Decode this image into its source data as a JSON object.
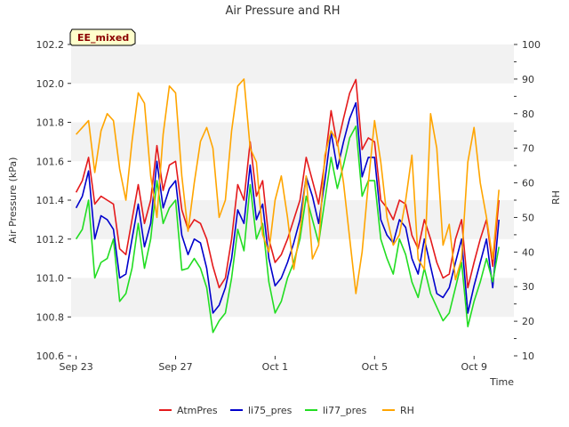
{
  "chart_data": {
    "type": "line",
    "title": "Air Pressure and RH",
    "xlabel": "Time",
    "ylabel": "Air Pressure (kPa)",
    "y2label": "RH",
    "badge": "EE_mixed",
    "x_ticks": [
      "Sep 23",
      "Sep 27",
      "Oct 1",
      "Oct 5",
      "Oct 9"
    ],
    "x_tick_days": [
      0,
      4,
      8,
      12,
      16
    ],
    "xlim_days": [
      -0.2,
      17.6
    ],
    "ylim": [
      100.6,
      102.2
    ],
    "y_ticks": [
      "100.6",
      "100.8",
      "101.0",
      "101.2",
      "101.4",
      "101.6",
      "101.8",
      "102.0",
      "102.2"
    ],
    "y2lim": [
      10,
      100
    ],
    "y2_ticks": [
      "10",
      "20",
      "30",
      "40",
      "50",
      "60",
      "70",
      "80",
      "90",
      "100"
    ],
    "grid": "horizontal bands",
    "legend_position": "bottom",
    "series": [
      {
        "name": "AtmPres",
        "color": "#e41a1c",
        "axis": "left",
        "x": [
          0,
          0.25,
          0.5,
          0.75,
          1,
          1.25,
          1.5,
          1.75,
          2,
          2.25,
          2.5,
          2.75,
          3,
          3.25,
          3.5,
          3.75,
          4,
          4.25,
          4.5,
          4.75,
          5,
          5.25,
          5.5,
          5.75,
          6,
          6.25,
          6.5,
          6.75,
          7,
          7.25,
          7.5,
          7.75,
          8,
          8.25,
          8.5,
          8.75,
          9,
          9.25,
          9.5,
          9.75,
          10,
          10.25,
          10.5,
          10.75,
          11,
          11.25,
          11.5,
          11.75,
          12,
          12.25,
          12.5,
          12.75,
          13,
          13.25,
          13.5,
          13.75,
          14,
          14.25,
          14.5,
          14.75,
          15,
          15.25,
          15.5,
          15.75,
          16,
          16.25,
          16.5,
          16.75,
          17
        ],
        "values": [
          101.44,
          101.5,
          101.62,
          101.38,
          101.42,
          101.4,
          101.38,
          101.15,
          101.12,
          101.3,
          101.48,
          101.28,
          101.4,
          101.68,
          101.45,
          101.58,
          101.6,
          101.35,
          101.25,
          101.3,
          101.28,
          101.2,
          101.06,
          100.95,
          101.0,
          101.2,
          101.48,
          101.4,
          101.7,
          101.42,
          101.5,
          101.2,
          101.08,
          101.12,
          101.2,
          101.3,
          101.4,
          101.62,
          101.5,
          101.38,
          101.6,
          101.86,
          101.68,
          101.82,
          101.95,
          102.02,
          101.66,
          101.72,
          101.7,
          101.4,
          101.36,
          101.3,
          101.4,
          101.38,
          101.22,
          101.15,
          101.3,
          101.2,
          101.08,
          101.0,
          101.02,
          101.2,
          101.3,
          100.95,
          101.08,
          101.2,
          101.3,
          101.06,
          101.4
        ]
      },
      {
        "name": "li75_pres",
        "color": "#0000cc",
        "axis": "left",
        "x": [
          0,
          0.25,
          0.5,
          0.75,
          1,
          1.25,
          1.5,
          1.75,
          2,
          2.25,
          2.5,
          2.75,
          3,
          3.25,
          3.5,
          3.75,
          4,
          4.25,
          4.5,
          4.75,
          5,
          5.25,
          5.5,
          5.75,
          6,
          6.25,
          6.5,
          6.75,
          7,
          7.25,
          7.5,
          7.75,
          8,
          8.25,
          8.5,
          8.75,
          9,
          9.25,
          9.5,
          9.75,
          10,
          10.25,
          10.5,
          10.75,
          11,
          11.25,
          11.5,
          11.75,
          12,
          12.25,
          12.5,
          12.75,
          13,
          13.25,
          13.5,
          13.75,
          14,
          14.25,
          14.5,
          14.75,
          15,
          15.25,
          15.5,
          15.75,
          16,
          16.25,
          16.5,
          16.75,
          17
        ],
        "values": [
          101.36,
          101.42,
          101.55,
          101.2,
          101.32,
          101.3,
          101.25,
          101.0,
          101.02,
          101.2,
          101.38,
          101.16,
          101.28,
          101.6,
          101.36,
          101.46,
          101.5,
          101.22,
          101.12,
          101.2,
          101.18,
          101.05,
          100.82,
          100.86,
          100.95,
          101.1,
          101.35,
          101.28,
          101.58,
          101.3,
          101.38,
          101.1,
          100.96,
          101.0,
          101.08,
          101.18,
          101.3,
          101.52,
          101.42,
          101.28,
          101.5,
          101.75,
          101.56,
          101.7,
          101.82,
          101.9,
          101.52,
          101.62,
          101.62,
          101.3,
          101.22,
          101.18,
          101.3,
          101.26,
          101.1,
          101.02,
          101.2,
          101.06,
          100.92,
          100.9,
          100.95,
          101.08,
          101.2,
          100.82,
          100.96,
          101.08,
          101.2,
          100.95,
          101.3
        ]
      },
      {
        "name": "li77_pres",
        "color": "#22dd22",
        "axis": "left",
        "x": [
          0,
          0.25,
          0.5,
          0.75,
          1,
          1.25,
          1.5,
          1.75,
          2,
          2.25,
          2.5,
          2.75,
          3,
          3.25,
          3.5,
          3.75,
          4,
          4.25,
          4.5,
          4.75,
          5,
          5.25,
          5.5,
          5.75,
          6,
          6.25,
          6.5,
          6.75,
          7,
          7.25,
          7.5,
          7.75,
          8,
          8.25,
          8.5,
          8.75,
          9,
          9.25,
          9.5,
          9.75,
          10,
          10.25,
          10.5,
          10.75,
          11,
          11.25,
          11.5,
          11.75,
          12,
          12.25,
          12.5,
          12.75,
          13,
          13.25,
          13.5,
          13.75,
          14,
          14.25,
          14.5,
          14.75,
          15,
          15.25,
          15.5,
          15.75,
          16,
          16.25,
          16.5,
          16.75,
          17
        ],
        "values": [
          101.2,
          101.25,
          101.4,
          101.0,
          101.08,
          101.1,
          101.2,
          100.88,
          100.92,
          101.05,
          101.28,
          101.05,
          101.2,
          101.5,
          101.28,
          101.36,
          101.4,
          101.04,
          101.05,
          101.1,
          101.05,
          100.95,
          100.72,
          100.78,
          100.82,
          101.0,
          101.25,
          101.14,
          101.48,
          101.2,
          101.28,
          100.98,
          100.82,
          100.88,
          101.0,
          101.08,
          101.2,
          101.42,
          101.3,
          101.18,
          101.4,
          101.62,
          101.46,
          101.58,
          101.72,
          101.78,
          101.42,
          101.5,
          101.5,
          101.2,
          101.1,
          101.02,
          101.2,
          101.12,
          100.98,
          100.9,
          101.05,
          100.92,
          100.85,
          100.78,
          100.82,
          100.95,
          101.08,
          100.75,
          100.88,
          100.98,
          101.1,
          100.98,
          101.16
        ]
      },
      {
        "name": "RH",
        "color": "#ffa500",
        "axis": "right",
        "x": [
          0,
          0.25,
          0.5,
          0.75,
          1,
          1.25,
          1.5,
          1.75,
          2,
          2.25,
          2.5,
          2.75,
          3,
          3.25,
          3.5,
          3.75,
          4,
          4.25,
          4.5,
          4.75,
          5,
          5.25,
          5.5,
          5.75,
          6,
          6.25,
          6.5,
          6.75,
          7,
          7.25,
          7.5,
          7.75,
          8,
          8.25,
          8.5,
          8.75,
          9,
          9.25,
          9.5,
          9.75,
          10,
          10.25,
          10.5,
          10.75,
          11,
          11.25,
          11.5,
          11.75,
          12,
          12.25,
          12.5,
          12.75,
          13,
          13.25,
          13.5,
          13.75,
          14,
          14.25,
          14.5,
          14.75,
          15,
          15.25,
          15.5,
          15.75,
          16,
          16.25,
          16.5,
          16.75,
          17
        ],
        "values": [
          74,
          76,
          78,
          63,
          75,
          80,
          78,
          64,
          55,
          72,
          86,
          83,
          62,
          50,
          74,
          88,
          86,
          62,
          46,
          60,
          72,
          76,
          70,
          50,
          55,
          75,
          88,
          90,
          70,
          66,
          45,
          40,
          55,
          62,
          50,
          35,
          46,
          62,
          38,
          42,
          68,
          75,
          72,
          60,
          44,
          28,
          40,
          60,
          78,
          66,
          50,
          42,
          45,
          55,
          68,
          38,
          35,
          80,
          70,
          42,
          48,
          32,
          38,
          66,
          76,
          60,
          50,
          38,
          58
        ]
      }
    ]
  }
}
